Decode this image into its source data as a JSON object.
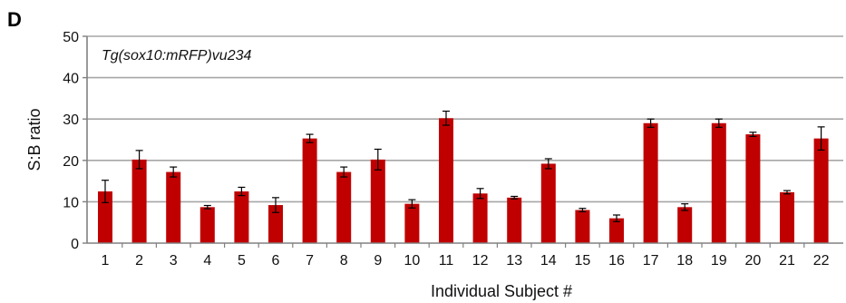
{
  "panel_label": "D",
  "chart_data": {
    "type": "bar",
    "title": "",
    "annotation": "Tg(sox10:mRFP)vu234",
    "xlabel": "Individual Subject #",
    "ylabel": "S:B ratio",
    "ylim": [
      0,
      50
    ],
    "yticks": [
      "0",
      "10",
      "20",
      "30",
      "40",
      "50"
    ],
    "grid": true,
    "categories": [
      "1",
      "2",
      "3",
      "4",
      "5",
      "6",
      "7",
      "8",
      "9",
      "10",
      "11",
      "12",
      "13",
      "14",
      "15",
      "16",
      "17",
      "18",
      "19",
      "20",
      "21",
      "22"
    ],
    "values": [
      12.5,
      20.2,
      17.2,
      8.7,
      12.5,
      9.2,
      25.3,
      17.2,
      20.2,
      9.5,
      30.2,
      12.0,
      11.0,
      19.2,
      8.0,
      6.0,
      29.0,
      8.7,
      29.0,
      26.3,
      12.3,
      25.3
    ],
    "errors": [
      2.7,
      2.2,
      1.2,
      0.4,
      1.0,
      1.8,
      1.0,
      1.2,
      2.5,
      1.0,
      1.7,
      1.2,
      0.3,
      1.2,
      0.4,
      0.8,
      1.0,
      0.8,
      1.0,
      0.5,
      0.4,
      2.8
    ],
    "colors": {
      "bar": "#c00000",
      "grid": "#a6a6a6",
      "axis": "#808080",
      "error": "#000000"
    }
  }
}
